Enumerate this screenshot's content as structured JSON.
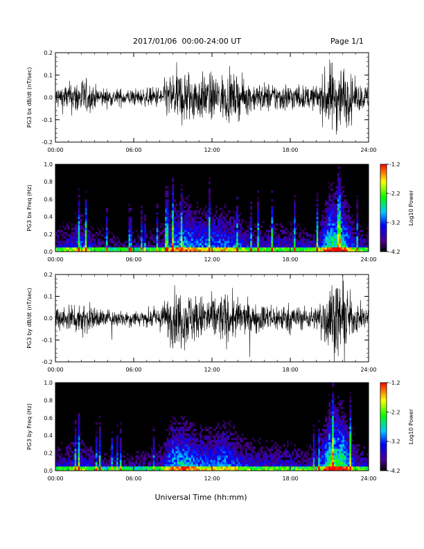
{
  "header": {
    "title": "2017/01/06  00:00-24:00 UT",
    "page_label": "Page 1/1"
  },
  "chart_data": [
    {
      "type": "line",
      "ylabel": "PG3 bx dB/dt (nT/sec)",
      "ylim": [
        -0.2,
        0.2
      ],
      "yticks": [
        -0.2,
        -0.1,
        0.0,
        0.1,
        0.2
      ],
      "ytick_labels": [
        "-0.2",
        "-0.1",
        "0.0",
        "0.1",
        "0.2"
      ],
      "xlim": [
        0,
        24
      ],
      "xticks": [
        0,
        6,
        12,
        18,
        24
      ],
      "xtick_labels": [
        "00:00",
        "06:00",
        "12:00",
        "18:00",
        "24:00"
      ],
      "activity_profile": {
        "hours": [
          0,
          1,
          2,
          3,
          4,
          5,
          6,
          7,
          8,
          9,
          10,
          11,
          12,
          13,
          14,
          15,
          16,
          17,
          18,
          19,
          20,
          21,
          22,
          23,
          24
        ],
        "amplitude": [
          0.04,
          0.05,
          0.07,
          0.04,
          0.03,
          0.03,
          0.03,
          0.03,
          0.04,
          0.09,
          0.1,
          0.08,
          0.08,
          0.08,
          0.07,
          0.05,
          0.05,
          0.05,
          0.05,
          0.04,
          0.04,
          0.12,
          0.12,
          0.05,
          0.04
        ]
      }
    },
    {
      "type": "heatmap",
      "ylabel": "PG3 bx Freq (Hz)",
      "ylim": [
        0.0,
        1.0
      ],
      "yticks": [
        0.0,
        0.2,
        0.4,
        0.6,
        0.8,
        1.0
      ],
      "ytick_labels": [
        "0.0",
        "0.2",
        "0.4",
        "0.6",
        "0.8",
        "1.0"
      ],
      "xlim": [
        0,
        24
      ],
      "xticks": [
        0,
        6,
        12,
        18,
        24
      ],
      "xtick_labels": [
        "00:00",
        "06:00",
        "12:00",
        "18:00",
        "24:00"
      ],
      "colorbar": {
        "label": "Log10 Power",
        "range": [
          -4.2,
          -1.2
        ],
        "ticks": [
          -1.2,
          -2.2,
          -3.2,
          -4.2
        ],
        "tick_labels": [
          "-1.2",
          "-2.2",
          "-3.2",
          "-4.2"
        ]
      }
    },
    {
      "type": "line",
      "ylabel": "PG3 by dB/dt (nT/sec)",
      "ylim": [
        -0.2,
        0.2
      ],
      "yticks": [
        -0.2,
        -0.1,
        0.0,
        0.1,
        0.2
      ],
      "ytick_labels": [
        "-0.2",
        "-0.1",
        "0.0",
        "0.1",
        "0.2"
      ],
      "xlim": [
        0,
        24
      ],
      "xticks": [
        0,
        6,
        12,
        18,
        24
      ],
      "xtick_labels": [
        "00:00",
        "06:00",
        "12:00",
        "18:00",
        "24:00"
      ],
      "activity_profile": {
        "hours": [
          0,
          1,
          2,
          3,
          4,
          5,
          6,
          7,
          8,
          9,
          10,
          11,
          12,
          13,
          14,
          15,
          16,
          17,
          18,
          19,
          20,
          21,
          22,
          23,
          24
        ],
        "amplitude": [
          0.04,
          0.05,
          0.06,
          0.04,
          0.03,
          0.03,
          0.03,
          0.03,
          0.04,
          0.1,
          0.1,
          0.08,
          0.08,
          0.09,
          0.07,
          0.05,
          0.05,
          0.05,
          0.05,
          0.04,
          0.04,
          0.13,
          0.13,
          0.05,
          0.04
        ]
      }
    },
    {
      "type": "heatmap",
      "ylabel": "PG3 by Freq (Hz)",
      "ylim": [
        0.0,
        1.0
      ],
      "yticks": [
        0.0,
        0.2,
        0.4,
        0.6,
        0.8,
        1.0
      ],
      "ytick_labels": [
        "0.0",
        "0.2",
        "0.4",
        "0.6",
        "0.8",
        "1.0"
      ],
      "xlim": [
        0,
        24
      ],
      "xticks": [
        0,
        6,
        12,
        18,
        24
      ],
      "xtick_labels": [
        "00:00",
        "06:00",
        "12:00",
        "18:00",
        "24:00"
      ],
      "colorbar": {
        "label": "Log10 Power",
        "range": [
          -4.2,
          -1.2
        ],
        "ticks": [
          -1.2,
          -2.2,
          -3.2,
          -4.2
        ],
        "tick_labels": [
          "-1.2",
          "-2.2",
          "-3.2",
          "-4.2"
        ]
      }
    }
  ],
  "xlabel": "Universal Time (hh:mm)"
}
